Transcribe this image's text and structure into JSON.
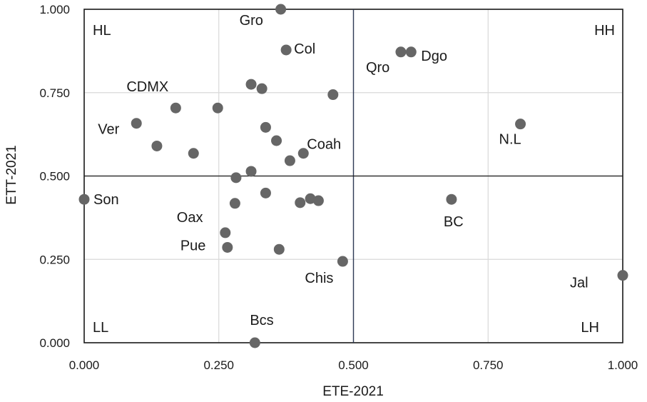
{
  "chart_data": {
    "type": "scatter",
    "title": "",
    "xlabel": "ETE-2021",
    "ylabel": "ETT-2021",
    "xlim": [
      0,
      1
    ],
    "ylim": [
      0,
      1
    ],
    "xticks": [
      "0.000",
      "0.250",
      "0.500",
      "0.750",
      "1.000"
    ],
    "yticks": [
      "0.000",
      "0.250",
      "0.500",
      "0.750",
      "1.000"
    ],
    "xtick_values": [
      0,
      0.25,
      0.5,
      0.75,
      1
    ],
    "ytick_values": [
      0,
      0.25,
      0.5,
      0.75,
      1
    ],
    "grid": true,
    "reference_lines": {
      "x": 0.5,
      "y": 0.5
    },
    "quadrant_labels": [
      "HL",
      "HH",
      "LL",
      "LH"
    ],
    "marker_color": "#666666",
    "points": [
      {
        "x": 0.365,
        "y": 1.0,
        "label": "Gro"
      },
      {
        "x": 0.375,
        "y": 0.878,
        "label": "Col"
      },
      {
        "x": 0.588,
        "y": 0.872,
        "label": "Qro"
      },
      {
        "x": 0.607,
        "y": 0.872,
        "label": "Dgo"
      },
      {
        "x": 0.31,
        "y": 0.775,
        "label": ""
      },
      {
        "x": 0.33,
        "y": 0.762,
        "label": ""
      },
      {
        "x": 0.462,
        "y": 0.744,
        "label": ""
      },
      {
        "x": 0.17,
        "y": 0.704,
        "label": "CDMX"
      },
      {
        "x": 0.248,
        "y": 0.704,
        "label": ""
      },
      {
        "x": 0.097,
        "y": 0.658,
        "label": "Ver"
      },
      {
        "x": 0.81,
        "y": 0.656,
        "label": "N.L"
      },
      {
        "x": 0.337,
        "y": 0.646,
        "label": ""
      },
      {
        "x": 0.357,
        "y": 0.606,
        "label": ""
      },
      {
        "x": 0.135,
        "y": 0.59,
        "label": ""
      },
      {
        "x": 0.203,
        "y": 0.568,
        "label": ""
      },
      {
        "x": 0.407,
        "y": 0.568,
        "label": "Coah"
      },
      {
        "x": 0.382,
        "y": 0.546,
        "label": ""
      },
      {
        "x": 0.31,
        "y": 0.514,
        "label": ""
      },
      {
        "x": 0.282,
        "y": 0.495,
        "label": ""
      },
      {
        "x": 0.337,
        "y": 0.449,
        "label": ""
      },
      {
        "x": 0.0,
        "y": 0.43,
        "label": "Son"
      },
      {
        "x": 0.42,
        "y": 0.432,
        "label": ""
      },
      {
        "x": 0.435,
        "y": 0.426,
        "label": ""
      },
      {
        "x": 0.401,
        "y": 0.42,
        "label": ""
      },
      {
        "x": 0.28,
        "y": 0.418,
        "label": ""
      },
      {
        "x": 0.682,
        "y": 0.43,
        "label": "BC"
      },
      {
        "x": 0.262,
        "y": 0.33,
        "label": "Oax"
      },
      {
        "x": 0.266,
        "y": 0.286,
        "label": "Pue"
      },
      {
        "x": 0.362,
        "y": 0.28,
        "label": ""
      },
      {
        "x": 0.48,
        "y": 0.244,
        "label": "Chis"
      },
      {
        "x": 1.0,
        "y": 0.202,
        "label": "Jal"
      },
      {
        "x": 0.317,
        "y": 0.0,
        "label": "Bcs"
      }
    ]
  }
}
